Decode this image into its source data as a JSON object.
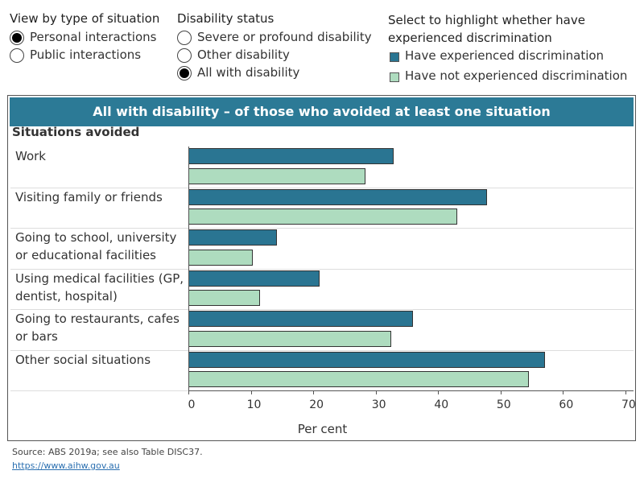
{
  "controls": {
    "situation_type": {
      "title": "View by type of situation",
      "options": [
        {
          "label": "Personal interactions",
          "selected": true
        },
        {
          "label": "Public interactions",
          "selected": false
        }
      ]
    },
    "disability_status": {
      "title": "Disability status",
      "options": [
        {
          "label": "Severe or profound disability",
          "selected": false
        },
        {
          "label": "Other disability",
          "selected": false
        },
        {
          "label": "All with disability",
          "selected": true
        }
      ]
    },
    "highlight": {
      "title": "Select to highlight whether have experienced discrimination"
    }
  },
  "chart_data": {
    "type": "bar",
    "orientation": "horizontal",
    "title": "All with disability – of those who avoided at least one situation",
    "y_label": "Situations avoided",
    "x_label": "Per cent",
    "categories": [
      "Work",
      "Visiting family or friends",
      "Going to school, university or educational facilities",
      "Using medical facilities (GP, dentist, hospital)",
      "Going to restaurants, cafes or bars",
      "Other social situations"
    ],
    "series": [
      {
        "name": "Have experienced discrimination",
        "color": "#2a7592",
        "values": [
          32.9,
          47.8,
          14.2,
          21.0,
          36.0,
          57.1
        ]
      },
      {
        "name": "Have not experienced discrimination",
        "color": "#aedcbf",
        "values": [
          28.4,
          43.0,
          10.3,
          11.5,
          32.5,
          54.5
        ]
      }
    ],
    "xlim": [
      0,
      71.3
    ],
    "xticks": [
      0,
      10,
      20,
      30,
      40,
      50,
      60,
      70
    ]
  },
  "footer": {
    "source": "Source: ABS 2019a; see also Table DISC37.",
    "link": "https://www.aihw.gov.au"
  }
}
